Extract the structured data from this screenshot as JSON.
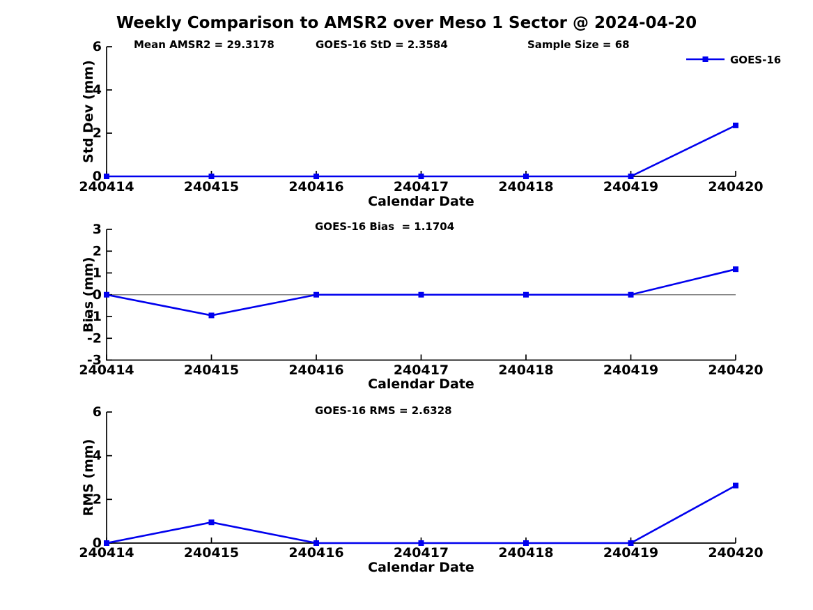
{
  "title": "Weekly Comparison to AMSR2 over Meso 1 Sector @ 2024-04-20",
  "legend": {
    "label": "GOES-16"
  },
  "colors": {
    "line": "#0000EE",
    "axis": "#000000",
    "zero_line": "#808080",
    "background": "#FFFFFF",
    "text": "#000000"
  },
  "chart_data": [
    {
      "type": "line",
      "subplot": "std-dev",
      "categories": [
        "240414",
        "240415",
        "240416",
        "240417",
        "240418",
        "240419",
        "240420"
      ],
      "series": [
        {
          "name": "GOES-16",
          "values": [
            0,
            0,
            0,
            0,
            0,
            0,
            2.3584
          ]
        }
      ],
      "annotations": [
        "Mean AMSR2 = 29.3178",
        "GOES-16 StD = 2.3584",
        "Sample Size = 68"
      ],
      "xlabel": "Calendar Date",
      "ylabel": "Std Dev (mm)",
      "ylim": [
        0,
        6
      ],
      "yticks": [
        0,
        2,
        4,
        6
      ],
      "grid": false,
      "zero_line": false,
      "legend_position": "upper-right",
      "marker": "square"
    },
    {
      "type": "line",
      "subplot": "bias",
      "categories": [
        "240414",
        "240415",
        "240416",
        "240417",
        "240418",
        "240419",
        "240420"
      ],
      "series": [
        {
          "name": "GOES-16",
          "values": [
            0,
            -0.95,
            0,
            0,
            0,
            0,
            1.1704
          ]
        }
      ],
      "annotations": [
        "GOES-16 Bias  = 1.1704"
      ],
      "xlabel": "Calendar Date",
      "ylabel": "Bias (mm)",
      "ylim": [
        -3,
        3
      ],
      "yticks": [
        -3,
        -2,
        -1,
        0,
        1,
        2,
        3
      ],
      "grid": false,
      "zero_line": true,
      "legend_position": "none",
      "marker": "square"
    },
    {
      "type": "line",
      "subplot": "rms",
      "categories": [
        "240414",
        "240415",
        "240416",
        "240417",
        "240418",
        "240419",
        "240420"
      ],
      "series": [
        {
          "name": "GOES-16",
          "values": [
            0,
            0.95,
            0,
            0,
            0,
            0,
            2.6328
          ]
        }
      ],
      "annotations": [
        "GOES-16 RMS = 2.6328"
      ],
      "xlabel": "Calendar Date",
      "ylabel": "RMS (mm)",
      "ylim": [
        0,
        6
      ],
      "yticks": [
        0,
        2,
        4,
        6
      ],
      "grid": false,
      "zero_line": false,
      "legend_position": "none",
      "marker": "square"
    }
  ]
}
